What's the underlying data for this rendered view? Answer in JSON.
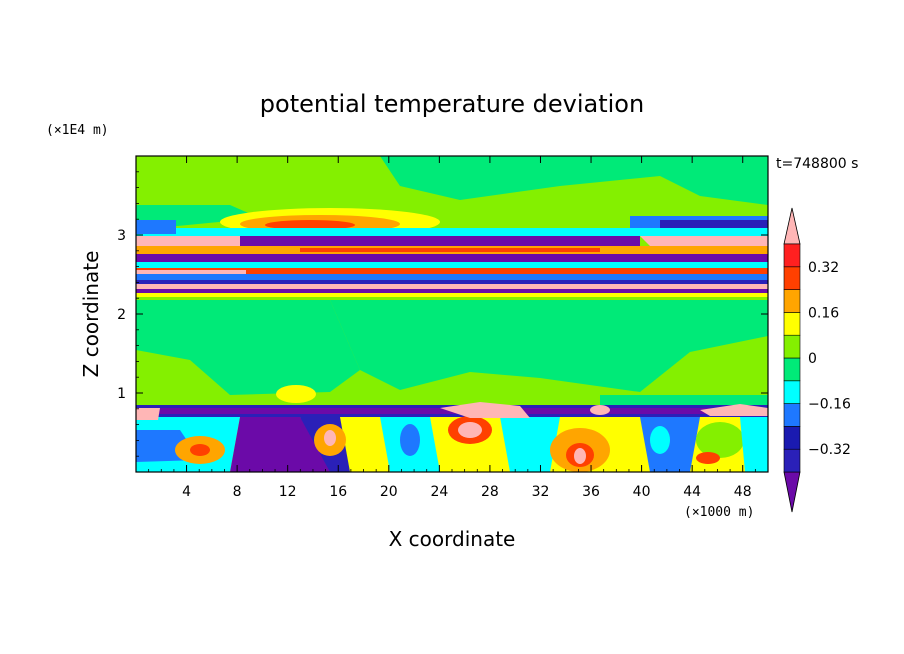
{
  "chart_data": {
    "type": "heatmap",
    "title": "potential temperature deviation",
    "time_label": "t=748800 s",
    "xlabel": "X coordinate",
    "ylabel": "Z coordinate",
    "x_unit": "(×1000 m)",
    "y_unit": "(×1E4 m)",
    "xlim": [
      0,
      50
    ],
    "ylim": [
      0,
      4
    ],
    "x_ticks": [
      4,
      8,
      12,
      16,
      20,
      24,
      28,
      32,
      36,
      40,
      44,
      48
    ],
    "x_tick_labels": [
      "4",
      "8",
      "12",
      "16",
      "20",
      "24",
      "28",
      "32",
      "36",
      "40",
      "44",
      "48"
    ],
    "y_ticks": [
      1,
      2,
      3
    ],
    "y_tick_labels": [
      "1",
      "2",
      "3"
    ],
    "colorbar": {
      "levels": [
        -0.4,
        -0.32,
        -0.24,
        -0.16,
        -0.08,
        0,
        0.08,
        0.16,
        0.24,
        0.32,
        0.4
      ],
      "colors": [
        "#6b0aa8",
        "#2a20b8",
        "#1a1ab0",
        "#1e78ff",
        "#00ffff",
        "#00ea78",
        "#84f000",
        "#ffff00",
        "#ffa500",
        "#ff4000",
        "#ff2020",
        "#ffb6b6"
      ],
      "tick_values": [
        0.32,
        0.16,
        0,
        -0.16,
        -0.32
      ],
      "tick_labels": [
        "0.32",
        "0.16",
        "0",
        "−0.16",
        "−0.32"
      ]
    },
    "grid": false,
    "legend": "colorbar-right"
  }
}
